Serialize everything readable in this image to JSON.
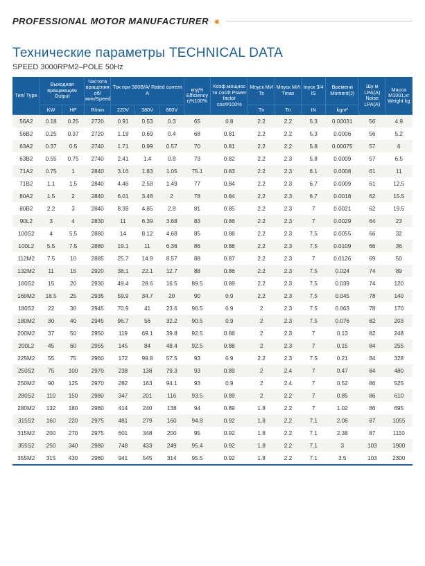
{
  "header": {
    "title": "PROFESSIONAL MOTOR MANUFACTURER",
    "arrows": "‹‹‹"
  },
  "section": {
    "main_title": "Технические параметры  TECHNICAL DATA",
    "sub_title": "SPEED 3000RPM2–POLE 50Hz"
  },
  "table": {
    "header_colors": {
      "bg": "#1a5f9e",
      "border": "#3a7ab5",
      "text": "#ffffff"
    },
    "row_colors": {
      "odd": "#f5f3ee",
      "even": "#ffffff",
      "bottom_rule": "#1a5f9e"
    },
    "header_row1": {
      "type": "Тип/\nType",
      "output": "Выходная\nвращающим\nOutput",
      "speed": "Частота\nвращения об/\nмин/Speed",
      "current": "Ток при 380В/А/\nRated current A",
      "eff": "кпд%\nEfficiency\nη%100%",
      "pf": "Коэф.мощнос\nти cosΦ\nPower factor\ncosΦ100%",
      "ts": "Мпуск МИ\nTs",
      "tmax": "Мпуск МИ\nTmax",
      "is": "Iпуск 3/4\nIS",
      "moment": "Времени\nMoment(J)",
      "noise": "Шу м\nLPA(А)\nNoise\nLPA(А)",
      "weight": "Масса\nM1001,кг\nWeight\nkg"
    },
    "header_row2": {
      "kw": "KW",
      "hp": "HP",
      "rpm": "R/min",
      "v220": "220V",
      "v380": "380V",
      "v660": "660V",
      "tn1": "Tn",
      "tn2": "Tn",
      "in": "IN",
      "kgm": "kgm²"
    },
    "rows": [
      [
        "56A2",
        "0.18",
        "0.25",
        "2720",
        "0.91",
        "0.53",
        "0.3",
        "65",
        "0.8",
        "2.2",
        "2.2",
        "5.3",
        "0.00031",
        "56",
        "4.9"
      ],
      [
        "56B2",
        "0.25",
        "0.37",
        "2720",
        "1.19",
        "0.69",
        "0.4",
        "68",
        "0.81",
        "2.2",
        "2.2",
        "5.3",
        "0.0006",
        "56",
        "5.2"
      ],
      [
        "63A2",
        "0.37",
        "0.5",
        "2740",
        "1.71",
        "0.99",
        "0.57",
        "70",
        "0.81",
        "2.2",
        "2.2",
        "5.8",
        "0.00075",
        "57",
        "6"
      ],
      [
        "63B2",
        "0.55",
        "0.75",
        "2740",
        "2.41",
        "1.4",
        "0.8",
        "73",
        "0.82",
        "2.2",
        "2.3",
        "5.8",
        "0.0009",
        "57",
        "6.5"
      ],
      [
        "71A2",
        "0.75",
        "1",
        "2840",
        "3.16",
        "1.83",
        "1.05",
        "75.1",
        "0.83",
        "2.2",
        "2.3",
        "6.1",
        "0.0008",
        "61",
        "11"
      ],
      [
        "71B2",
        "1.1",
        "1.5",
        "2840",
        "4.46",
        "2.58",
        "1.49",
        "77",
        "0.84",
        "2.2",
        "2.3",
        "6.7",
        "0.0009",
        "61",
        "12.5"
      ],
      [
        "80A2",
        "1.5",
        "2",
        "2840",
        "6.01",
        "3.48",
        "2",
        "78",
        "0.84",
        "2.2",
        "2.3",
        "6.7",
        "0.0018",
        "62",
        "15.5"
      ],
      [
        "80B2",
        "2.2",
        "3",
        "2840",
        "8.39",
        "4.85",
        "2.8",
        "81",
        "0.85",
        "2.2",
        "2.3",
        "7",
        "0.0021",
        "62",
        "19.5"
      ],
      [
        "90L2",
        "3",
        "4",
        "2830",
        "11",
        "6.39",
        "3.68",
        "83",
        "0.86",
        "2.2",
        "2.3",
        "7",
        "0.0029",
        "64",
        "23"
      ],
      [
        "100S2",
        "4",
        "5.5",
        "2880",
        "14",
        "8.12",
        "4.68",
        "85",
        "0.88",
        "2.2",
        "2.3",
        "7.5",
        "0.0055",
        "66",
        "32"
      ],
      [
        "100L2",
        "5.5",
        "7.5",
        "2880",
        "19.1",
        "11",
        "6.36",
        "86",
        "0.88",
        "2.2",
        "2.3",
        "7.5",
        "0.0109",
        "66",
        "36"
      ],
      [
        "112M2",
        "7.5",
        "10",
        "2885",
        "25.7",
        "14.9",
        "8.57",
        "88",
        "0.87",
        "2.2",
        "2.3",
        "7",
        "0.0126",
        "69",
        "50"
      ],
      [
        "132M2",
        "11",
        "15",
        "2920",
        "38.1",
        "22.1",
        "12.7",
        "88",
        "0.86",
        "2.2",
        "2.3",
        "7.5",
        "0.024",
        "74",
        "89"
      ],
      [
        "160S2",
        "15",
        "20",
        "2930",
        "49.4",
        "28.6",
        "16.5",
        "89.5",
        "0.89",
        "2.2",
        "2.3",
        "7.5",
        "0.039",
        "74",
        "120"
      ],
      [
        "160M2",
        "18.5",
        "25",
        "2935",
        "59.9",
        "34.7",
        "20",
        "90",
        "0.9",
        "2.2",
        "2.3",
        "7.5",
        "0.045",
        "78",
        "140"
      ],
      [
        "180S2",
        "22",
        "30",
        "2945",
        "70.9",
        "41",
        "23.6",
        "90.5",
        "0.9",
        "2",
        "2.3",
        "7.5",
        "0.063",
        "78",
        "170"
      ],
      [
        "180M2",
        "30",
        "40",
        "2945",
        "96.7",
        "56",
        "32.2",
        "90.5",
        "0.9",
        "2",
        "2.3",
        "7.5",
        "0.076",
        "82",
        "203"
      ],
      [
        "200M2",
        "37",
        "50",
        "2950",
        "119",
        "69.1",
        "39.8",
        "92.5",
        "0.88",
        "2",
        "2.3",
        "7",
        "0.13",
        "82",
        "248"
      ],
      [
        "200L2",
        "45",
        "60",
        "2955",
        "145",
        "84",
        "48.4",
        "92.5",
        "0.88",
        "2",
        "2.3",
        "7",
        "0.15",
        "84",
        "255"
      ],
      [
        "225M2",
        "55",
        "75",
        "2960",
        "172",
        "99.8",
        "57.5",
        "93",
        "0.9",
        "2.2",
        "2.3",
        "7.5",
        "0.21",
        "84",
        "328"
      ],
      [
        "250S2",
        "75",
        "100",
        "2970",
        "238",
        "138",
        "79.3",
        "93",
        "0.89",
        "2",
        "2.4",
        "7",
        "0.47",
        "84",
        "480"
      ],
      [
        "250M2",
        "90",
        "125",
        "2970",
        "282",
        "163",
        "94.1",
        "93",
        "0.9",
        "2",
        "2.4",
        "7",
        "0.52",
        "86",
        "525"
      ],
      [
        "280S2",
        "110",
        "150",
        "2980",
        "347",
        "201",
        "116",
        "93.5",
        "0.89",
        "2",
        "2.2",
        "7",
        "0.85",
        "86",
        "610"
      ],
      [
        "280M2",
        "132",
        "180",
        "2980",
        "414",
        "240",
        "138",
        "94",
        "0.89",
        "1.8",
        "2.2",
        "7",
        "1.02",
        "86",
        "695"
      ],
      [
        "315S2",
        "160",
        "220",
        "2975",
        "481",
        "279",
        "160",
        "94.8",
        "0.92",
        "1.8",
        "2.2",
        "7.1",
        "2.08",
        "87",
        "1055"
      ],
      [
        "315M2",
        "200",
        "270",
        "2975",
        "601",
        "348",
        "200",
        "95",
        "0.92",
        "1.8",
        "2.2",
        "7.1",
        "2.38",
        "87",
        "1110"
      ],
      [
        "355S2",
        "250",
        "340",
        "2980",
        "748",
        "433",
        "249",
        "95.4",
        "0.92",
        "1.8",
        "2.2",
        "7.1",
        "3",
        "103",
        "1900"
      ],
      [
        "355M2",
        "315",
        "430",
        "2980",
        "941",
        "545",
        "314",
        "95.5",
        "0.92",
        "1.8",
        "2.2",
        "7.1",
        "3.5",
        "103",
        "2300"
      ]
    ]
  }
}
